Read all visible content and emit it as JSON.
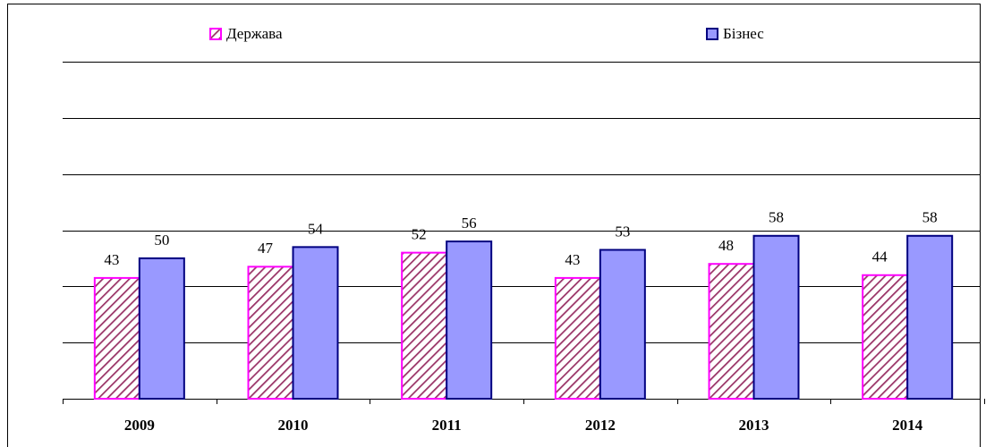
{
  "chart_data": {
    "type": "bar",
    "categories": [
      "2009",
      "2010",
      "2011",
      "2012",
      "2013",
      "2014"
    ],
    "series": [
      {
        "name": "Держава",
        "color": "#ff00ff",
        "hatch_color": "#993366",
        "pattern": "hatch",
        "values": [
          43,
          47,
          52,
          43,
          48,
          44
        ]
      },
      {
        "name": "Бізнес",
        "color": "#9999ff",
        "edge_color": "#000080",
        "values": [
          50,
          54,
          56,
          53,
          58,
          58
        ]
      }
    ],
    "ylim": [
      0,
      120
    ],
    "yticks": [
      0,
      20,
      40,
      60,
      80,
      100,
      120
    ],
    "grid": true,
    "legend": "top"
  }
}
